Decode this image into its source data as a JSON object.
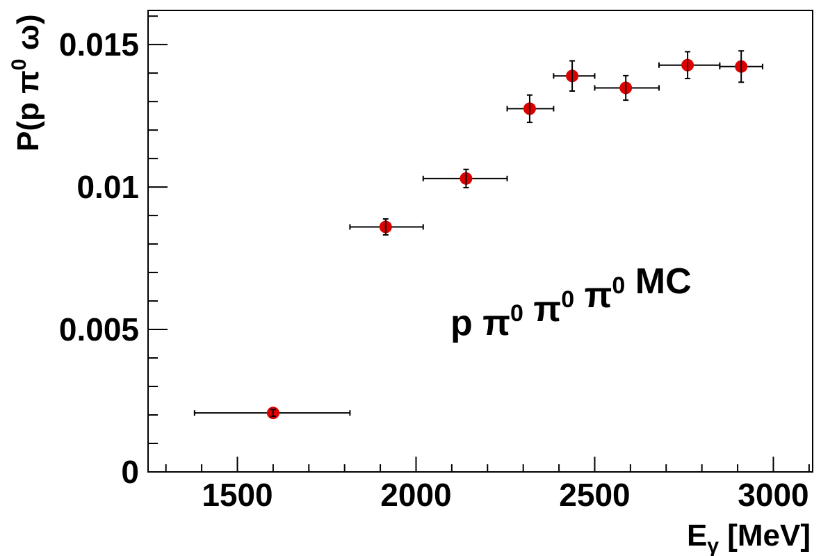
{
  "chart_data": {
    "type": "scatter",
    "xlabel_main": "E",
    "xlabel_sub": "γ",
    "xlabel_rest": " [MeV]",
    "ylabel_pre": "P(p π",
    "ylabel_sup": "0",
    "ylabel_post": " ω)",
    "annotation": {
      "parts": [
        {
          "text": "p π",
          "sup": "0"
        },
        {
          "text": " π",
          "sup": "0"
        },
        {
          "text": " π",
          "sup": "0"
        },
        {
          "text": " MC",
          "sup": ""
        }
      ]
    },
    "xlim": [
      1250,
      3110
    ],
    "ylim": [
      0,
      0.0162
    ],
    "x_ticks": [
      1500,
      2000,
      2500,
      3000
    ],
    "x_tick_labels": [
      "1500",
      "2000",
      "2500",
      "3000"
    ],
    "y_ticks": [
      0,
      0.005,
      0.01,
      0.015
    ],
    "y_tick_labels": [
      "0",
      "0.005",
      "0.01",
      "0.015"
    ],
    "marker_color": "#dd0000",
    "series": [
      {
        "points": [
          {
            "x": 1600,
            "y": 0.00207,
            "xerr_low": 1380,
            "xerr_high": 1815,
            "yerr": 0.00012
          },
          {
            "x": 1915,
            "y": 0.0086,
            "xerr_low": 1815,
            "xerr_high": 2020,
            "yerr": 0.00028
          },
          {
            "x": 2140,
            "y": 0.0103,
            "xerr_low": 2020,
            "xerr_high": 2255,
            "yerr": 0.00032
          },
          {
            "x": 2318,
            "y": 0.01275,
            "xerr_low": 2255,
            "xerr_high": 2385,
            "yerr": 0.00048
          },
          {
            "x": 2437,
            "y": 0.0139,
            "xerr_low": 2385,
            "xerr_high": 2500,
            "yerr": 0.00053
          },
          {
            "x": 2587,
            "y": 0.01348,
            "xerr_low": 2500,
            "xerr_high": 2680,
            "yerr": 0.00043
          },
          {
            "x": 2760,
            "y": 0.01428,
            "xerr_low": 2680,
            "xerr_high": 2850,
            "yerr": 0.00047
          },
          {
            "x": 2910,
            "y": 0.01423,
            "xerr_low": 2850,
            "xerr_high": 2970,
            "yerr": 0.00055
          }
        ]
      }
    ]
  }
}
